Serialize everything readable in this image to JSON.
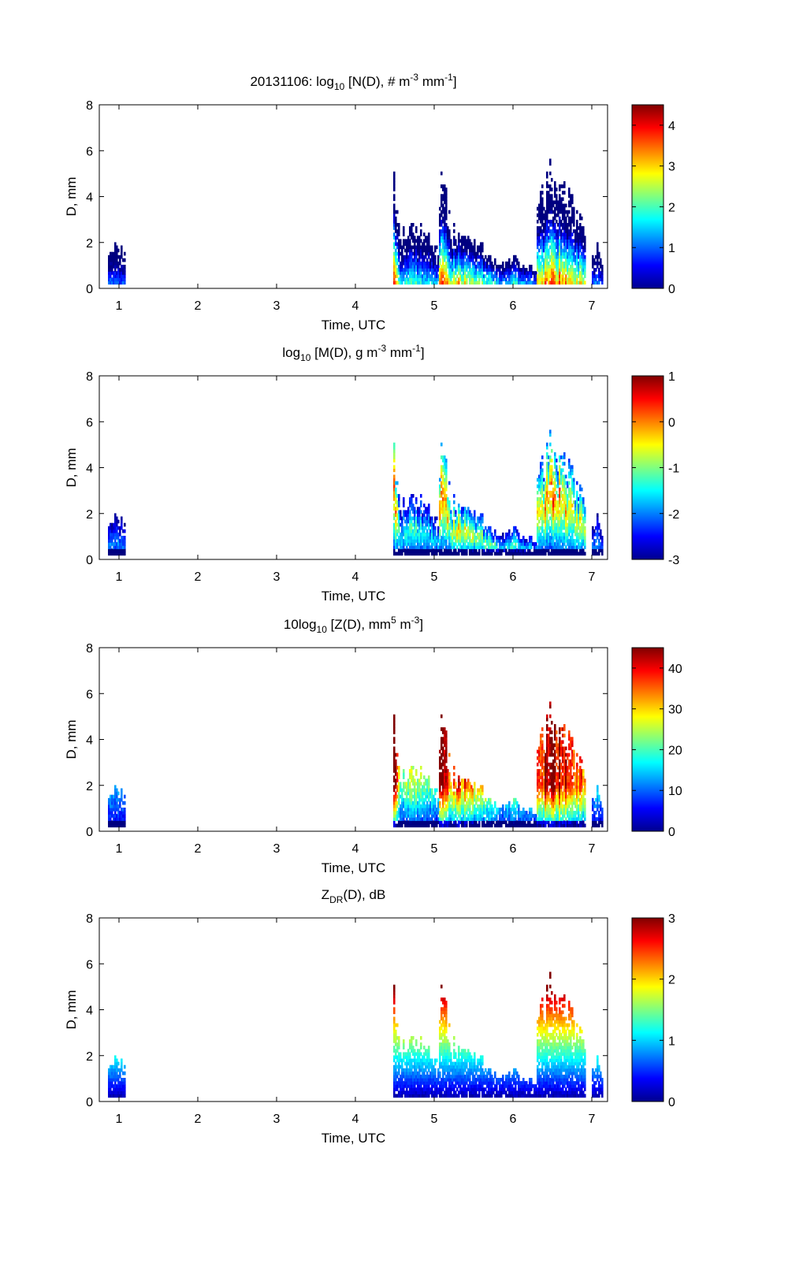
{
  "figure": {
    "date_label": "20131106:"
  },
  "chart_data": [
    {
      "type": "heatmap",
      "title_parts": {
        "pre": "log",
        "sub": "10",
        "body": " [N(D), # m",
        "sup1": "-3",
        "mid": " mm",
        "sup2": "-1",
        "post": "]"
      },
      "xlabel": "Time, UTC",
      "ylabel": "D, mm",
      "xlim": [
        0.75,
        7.2
      ],
      "ylim": [
        0,
        8
      ],
      "xticks": [
        1,
        2,
        3,
        4,
        5,
        6,
        7
      ],
      "yticks": [
        0,
        2,
        4,
        6,
        8
      ],
      "colorbar": {
        "range": [
          0,
          4.5
        ],
        "ticks": [
          0,
          1,
          2,
          3,
          4
        ]
      },
      "variable": "N"
    },
    {
      "type": "heatmap",
      "title_parts": {
        "pre": "log",
        "sub": "10",
        "body": " [M(D), g m",
        "sup1": "-3",
        "mid": " mm",
        "sup2": "-1",
        "post": "]"
      },
      "xlabel": "Time, UTC",
      "ylabel": "D, mm",
      "xlim": [
        0.75,
        7.2
      ],
      "ylim": [
        0,
        8
      ],
      "xticks": [
        1,
        2,
        3,
        4,
        5,
        6,
        7
      ],
      "yticks": [
        0,
        2,
        4,
        6,
        8
      ],
      "colorbar": {
        "range": [
          -3,
          1
        ],
        "ticks": [
          -3,
          -2,
          -1,
          0,
          1
        ]
      },
      "variable": "M"
    },
    {
      "type": "heatmap",
      "title_parts": {
        "pre": "10log",
        "sub": "10",
        "body": " [Z(D),  mm",
        "sup1": "5",
        "mid": " m",
        "sup2": "-3",
        "post": "]"
      },
      "xlabel": "Time, UTC",
      "ylabel": "D, mm",
      "xlim": [
        0.75,
        7.2
      ],
      "ylim": [
        0,
        8
      ],
      "xticks": [
        1,
        2,
        3,
        4,
        5,
        6,
        7
      ],
      "yticks": [
        0,
        2,
        4,
        6,
        8
      ],
      "colorbar": {
        "range": [
          0,
          45
        ],
        "ticks": [
          0,
          10,
          20,
          30,
          40
        ]
      },
      "variable": "Z"
    },
    {
      "type": "heatmap",
      "title_parts": {
        "pre": "Z",
        "sub": "DR",
        "body": "(D), dB",
        "sup1": "",
        "mid": "",
        "sup2": "",
        "post": ""
      },
      "xlabel": "Time, UTC",
      "ylabel": "D, mm",
      "xlim": [
        0.75,
        7.2
      ],
      "ylim": [
        0,
        8
      ],
      "xticks": [
        1,
        2,
        3,
        4,
        5,
        6,
        7
      ],
      "yticks": [
        0,
        2,
        4,
        6,
        8
      ],
      "colorbar": {
        "range": [
          0,
          3
        ],
        "ticks": [
          0,
          1,
          2,
          3
        ]
      },
      "variable": "ZDR"
    }
  ],
  "precip_events": [
    {
      "t_start": 0.85,
      "t_end": 1.07,
      "dmax_peak": 2.1,
      "peak_t": 0.95,
      "strength": 0.35
    },
    {
      "t_start": 4.46,
      "t_end": 4.55,
      "dmax_peak": 5.5,
      "peak_t": 4.47,
      "strength": 1.0
    },
    {
      "t_start": 4.55,
      "t_end": 5.05,
      "dmax_peak": 3.0,
      "peak_t": 4.75,
      "strength": 0.55
    },
    {
      "t_start": 5.05,
      "t_end": 5.2,
      "dmax_peak": 5.1,
      "peak_t": 5.1,
      "strength": 0.95
    },
    {
      "t_start": 5.2,
      "t_end": 5.8,
      "dmax_peak": 2.6,
      "peak_t": 5.3,
      "strength": 0.8
    },
    {
      "t_start": 5.8,
      "t_end": 6.28,
      "dmax_peak": 1.3,
      "peak_t": 6.0,
      "strength": 0.5
    },
    {
      "t_start": 6.28,
      "t_end": 6.9,
      "dmax_peak": 5.3,
      "peak_t": 6.5,
      "strength": 0.95
    },
    {
      "t_start": 6.98,
      "t_end": 7.12,
      "dmax_peak": 1.8,
      "peak_t": 7.05,
      "strength": 0.35
    }
  ]
}
